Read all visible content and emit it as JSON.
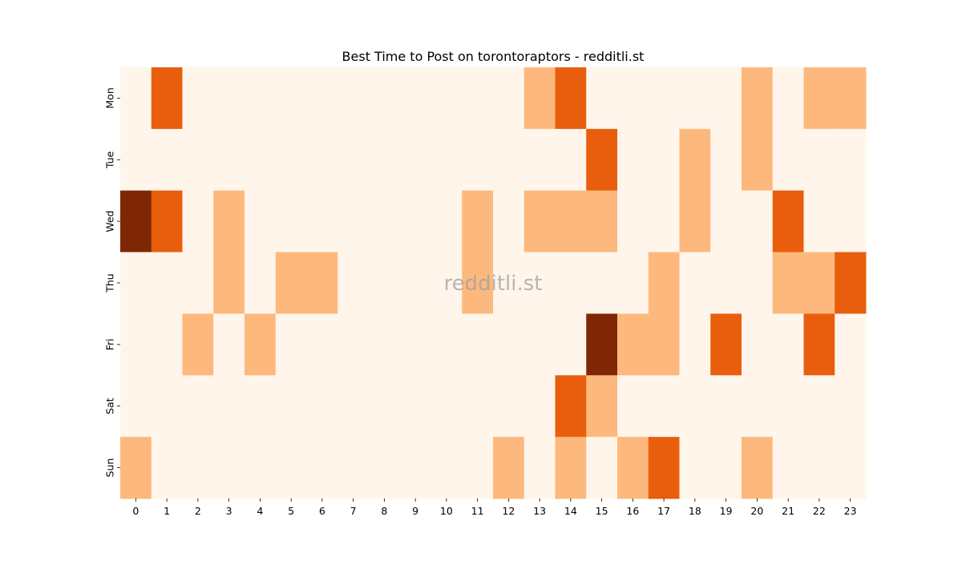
{
  "chart_data": {
    "type": "heatmap",
    "title": "Best Time to Post on torontoraptors - redditli.st",
    "watermark": "redditli.st",
    "x_labels": [
      "0",
      "1",
      "2",
      "3",
      "4",
      "5",
      "6",
      "7",
      "8",
      "9",
      "10",
      "11",
      "12",
      "13",
      "14",
      "15",
      "16",
      "17",
      "18",
      "19",
      "20",
      "21",
      "22",
      "23"
    ],
    "y_labels": [
      "Mon",
      "Tue",
      "Wed",
      "Thu",
      "Fri",
      "Sat",
      "Sun"
    ],
    "xlabel": "",
    "ylabel": "",
    "value_range": [
      0,
      3
    ],
    "colorbar": false,
    "values": [
      [
        0,
        2,
        0,
        0,
        0,
        0,
        0,
        0,
        0,
        0,
        0,
        0,
        0,
        1,
        2,
        0,
        0,
        0,
        0,
        0,
        1,
        0,
        1,
        1
      ],
      [
        0,
        0,
        0,
        0,
        0,
        0,
        0,
        0,
        0,
        0,
        0,
        0,
        0,
        0,
        0,
        2,
        0,
        0,
        1,
        0,
        1,
        0,
        0,
        0
      ],
      [
        3,
        2,
        0,
        1,
        0,
        0,
        0,
        0,
        0,
        0,
        0,
        1,
        0,
        1,
        1,
        1,
        0,
        0,
        1,
        0,
        0,
        2,
        0,
        0
      ],
      [
        0,
        0,
        0,
        1,
        0,
        1,
        1,
        0,
        0,
        0,
        0,
        1,
        0,
        0,
        0,
        0,
        0,
        1,
        0,
        0,
        0,
        1,
        1,
        2
      ],
      [
        0,
        0,
        1,
        0,
        1,
        0,
        0,
        0,
        0,
        0,
        0,
        0,
        0,
        0,
        0,
        3,
        1,
        1,
        0,
        2,
        0,
        0,
        2,
        0
      ],
      [
        0,
        0,
        0,
        0,
        0,
        0,
        0,
        0,
        0,
        0,
        0,
        0,
        0,
        0,
        2,
        1,
        0,
        0,
        0,
        0,
        0,
        0,
        0,
        0
      ],
      [
        1,
        0,
        0,
        0,
        0,
        0,
        0,
        0,
        0,
        0,
        0,
        0,
        1,
        0,
        1,
        0,
        1,
        2,
        0,
        0,
        1,
        0,
        0,
        0
      ]
    ],
    "colors": [
      "#fff5eb",
      "#fdb97d",
      "#e95e0d",
      "#7f2704"
    ]
  }
}
